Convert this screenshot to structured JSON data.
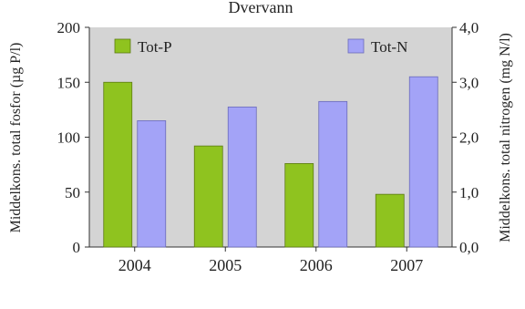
{
  "chart_data": {
    "type": "bar",
    "title": "Dvervann",
    "categories": [
      "2004",
      "2005",
      "2006",
      "2007"
    ],
    "series": [
      {
        "name": "Tot-P",
        "axis": "left",
        "color": "#8fc31f",
        "values": [
          150,
          92,
          76,
          48
        ]
      },
      {
        "name": "Tot-N",
        "axis": "right",
        "color": "#a3a3f7",
        "values": [
          2.3,
          2.55,
          2.65,
          3.1
        ]
      }
    ],
    "ylabel": "Middelkons. total fosfor (µg P/l)",
    "y2label": "Middelkons. total nitrogen (mg N/l)",
    "ylim": [
      0,
      200
    ],
    "y2lim": [
      0,
      4.0
    ],
    "yticks": [
      "0",
      "50",
      "100",
      "150",
      "200"
    ],
    "y2ticks": [
      "0,0",
      "1,0",
      "2,0",
      "3,0",
      "4,0"
    ],
    "legend_position": "top",
    "plot_background": "#d4d4d4",
    "grid": false
  }
}
